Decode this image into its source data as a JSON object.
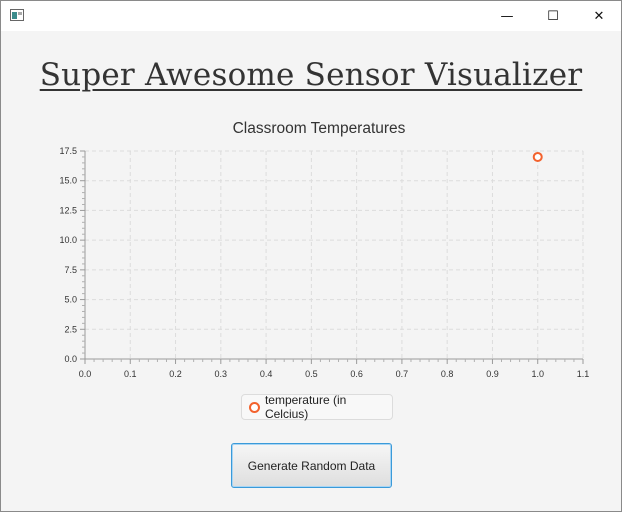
{
  "window": {
    "controls": {
      "minimize": "—",
      "maximize": "☐",
      "close": "✕"
    }
  },
  "heading": "Super Awesome Sensor Visualizer",
  "button": {
    "label": "Generate Random Data"
  },
  "chart_data": {
    "type": "scatter",
    "title": "Classroom Temperatures",
    "xlabel": "",
    "ylabel": "",
    "xlim": [
      0,
      1.1
    ],
    "ylim": [
      0,
      17.5
    ],
    "x_ticks": [
      "0.0",
      "0.1",
      "0.2",
      "0.3",
      "0.4",
      "0.5",
      "0.6",
      "0.7",
      "0.8",
      "0.9",
      "1.0",
      "1.1"
    ],
    "y_ticks": [
      "0.0",
      "2.5",
      "5.0",
      "7.5",
      "10.0",
      "12.5",
      "15.0",
      "17.5"
    ],
    "grid": true,
    "legend_position": "bottom",
    "series": [
      {
        "name": "temperature (in Celcius)",
        "color": "#f3622d",
        "points": [
          {
            "x": 1.0,
            "y": 17.0
          }
        ]
      }
    ]
  }
}
